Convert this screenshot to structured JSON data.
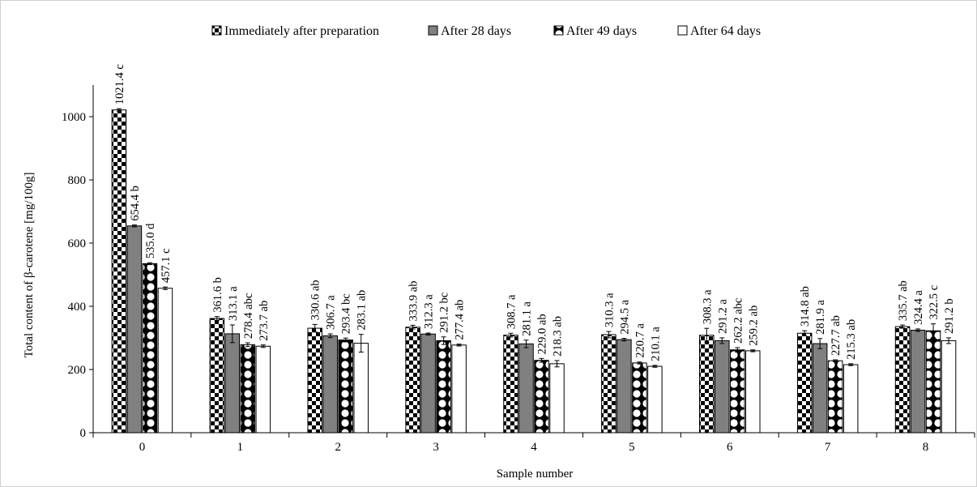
{
  "chart_data": {
    "type": "bar",
    "xlabel": "Sample number",
    "ylabel": "Total content of β-carotene [mg/100g]",
    "ylim": [
      0,
      1100
    ],
    "yticks": [
      0,
      200,
      400,
      600,
      800,
      1000
    ],
    "grid": false,
    "legend_position": "top",
    "categories": [
      "0",
      "1",
      "2",
      "3",
      "4",
      "5",
      "6",
      "7",
      "8"
    ],
    "series": [
      {
        "name": "Immediately after preparation",
        "pattern": "checker",
        "values": [
          1021.4,
          361.6,
          330.6,
          333.9,
          308.7,
          310.3,
          308.3,
          314.8,
          335.7
        ],
        "errors": [
          4,
          6,
          12,
          6,
          6,
          10,
          22,
          8,
          5
        ],
        "labels": [
          "1021.4  c",
          "361.6  b",
          "330.6  ab",
          "333.9  ab",
          "308.7  a",
          "310.3  a",
          "308.3  a",
          "314.8  ab",
          "335.7  ab"
        ]
      },
      {
        "name": "After 28 days",
        "pattern": "solid-gray",
        "values": [
          654.4,
          313.1,
          306.7,
          312.3,
          281.1,
          294.5,
          291.2,
          281.9,
          324.4
        ],
        "errors": [
          3,
          28,
          6,
          3,
          12,
          4,
          9,
          16,
          4
        ],
        "labels": [
          "654.4  b",
          "313.1  a",
          "306.7  a",
          "312.3  a",
          "281.1  a",
          "294.5  a",
          "291.2  a",
          "281.9  a",
          "324.4  a"
        ]
      },
      {
        "name": "After 49 days",
        "pattern": "dots",
        "values": [
          535.0,
          278.4,
          293.4,
          291.2,
          229.0,
          220.7,
          262.2,
          227.7,
          322.5
        ],
        "errors": [
          3,
          6,
          6,
          12,
          6,
          3,
          7,
          3,
          22
        ],
        "labels": [
          "535.0  d",
          "278.4  abc",
          "293.4  bc",
          "291.2  bc",
          "229.0  ab",
          "220.7  a",
          "262.2  abc",
          "227.7  ab",
          "322.5  c"
        ]
      },
      {
        "name": "After 64 days",
        "pattern": "white",
        "values": [
          457.1,
          273.7,
          283.1,
          277.4,
          218.3,
          210.1,
          259.2,
          215.3,
          291.2
        ],
        "errors": [
          4,
          4,
          28,
          3,
          10,
          3,
          3,
          3,
          9
        ],
        "labels": [
          "457.1  c",
          "273.7  ab",
          "283.1  ab",
          "277.4  ab",
          "218.3  ab",
          "210.1  a",
          "259.2  ab",
          "215.3  ab",
          "291.2  b"
        ]
      }
    ]
  }
}
